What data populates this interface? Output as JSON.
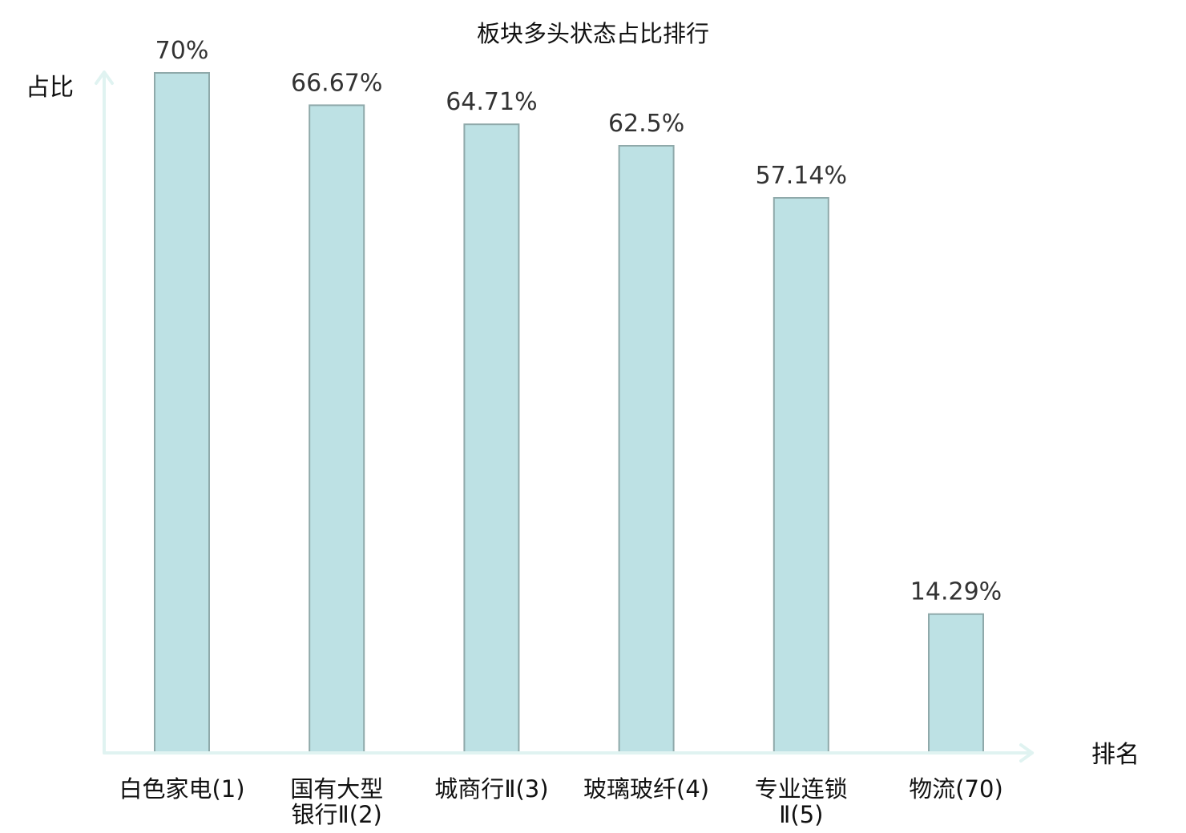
{
  "chart_data": {
    "type": "bar",
    "title": "板块多头状态占比排行",
    "ylabel": "占比",
    "xlabel": "排名",
    "ylim": [
      0,
      70
    ],
    "grid": false,
    "legend": "none",
    "categories": [
      [
        "白色家电(1)"
      ],
      [
        "国有大型",
        "银行Ⅱ(2)"
      ],
      [
        "城商行Ⅱ(3)"
      ],
      [
        "玻璃玻纤(4)"
      ],
      [
        "专业连锁",
        "Ⅱ(5)"
      ],
      [
        "物流(70)"
      ]
    ],
    "values": [
      70,
      66.67,
      64.71,
      62.5,
      57.14,
      14.29
    ],
    "value_labels": [
      "70%",
      "66.67%",
      "64.71%",
      "62.5%",
      "57.14%",
      "14.29%"
    ],
    "highlight_index": 5,
    "colors": {
      "bar_fill": "#bde1e4",
      "bar_stroke": "#8fa9aa",
      "axis": "#e0f3f1",
      "highlight_text": "#e00000",
      "text": "#111111",
      "value_text": "#333333"
    }
  }
}
